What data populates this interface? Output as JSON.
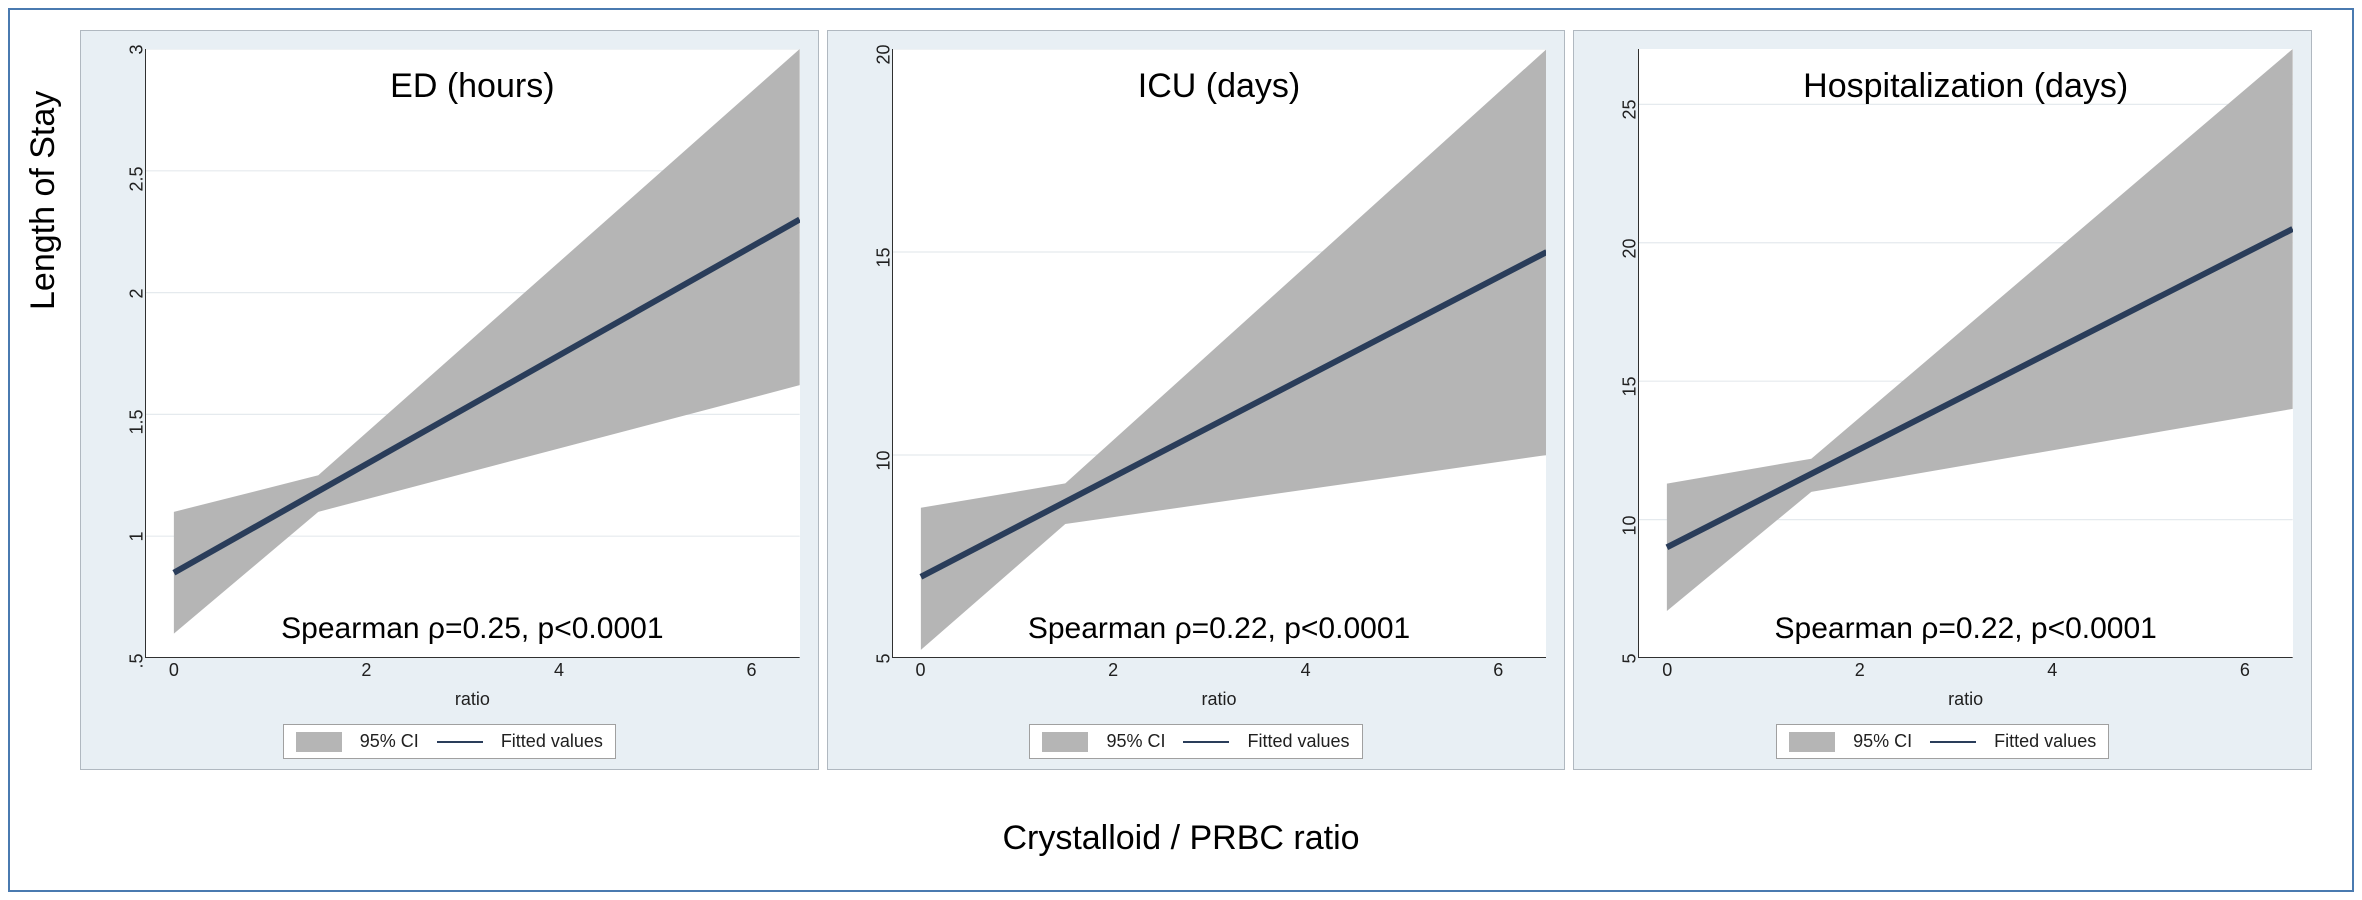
{
  "figure": {
    "y_axis_label": "Length of Stay",
    "x_axis_label": "Crystalloid / PRBC ratio",
    "outer_border_color": "#4a7ab0",
    "panel_bg": "#e8eff4",
    "plot_bg": "#ffffff",
    "grid_color": "#e5eaee",
    "ci_fill": "#b5b5b5",
    "line_color": "#2a3d5a",
    "line_width": 2.4,
    "tick_font_size": 18,
    "axis_title_font_size": 18,
    "panel_title_font_size": 34,
    "stats_font_size": 30,
    "legend": {
      "ci_label": "95% CI",
      "line_label": "Fitted values"
    },
    "x": {
      "min": -0.3,
      "max": 6.5,
      "ticks": [
        0,
        2,
        4,
        6
      ],
      "title": "ratio"
    },
    "panels": [
      {
        "title": "ED (hours)",
        "stats": "Spearman ρ=0.25, p<0.0001",
        "y": {
          "min": 0.5,
          "max": 3.0,
          "ticks": [
            0.5,
            1,
            1.5,
            2,
            2.5,
            3
          ],
          "tick_labels": [
            ".5",
            "1",
            "1.5",
            "2",
            "2.5",
            "3"
          ]
        },
        "line": {
          "x": [
            0,
            6.5
          ],
          "y": [
            0.85,
            2.3
          ]
        },
        "ci": {
          "x": [
            0,
            1.5,
            6.5
          ],
          "upper": [
            1.1,
            1.25,
            3.0
          ],
          "lower": [
            0.6,
            1.1,
            1.62
          ]
        }
      },
      {
        "title": "ICU (days)",
        "stats": "Spearman ρ=0.22, p<0.0001",
        "y": {
          "min": 5,
          "max": 20,
          "ticks": [
            5,
            10,
            15,
            20
          ],
          "tick_labels": [
            "5",
            "10",
            "15",
            "20"
          ]
        },
        "line": {
          "x": [
            0,
            6.5
          ],
          "y": [
            7.0,
            15.0
          ]
        },
        "ci": {
          "x": [
            0,
            1.5,
            6.5
          ],
          "upper": [
            8.7,
            9.3,
            20.0
          ],
          "lower": [
            5.2,
            8.3,
            10.0
          ]
        }
      },
      {
        "title": "Hospitalization (days)",
        "stats": "Spearman ρ=0.22, p<0.0001",
        "y": {
          "min": 5,
          "max": 27,
          "ticks": [
            5,
            10,
            15,
            20,
            25
          ],
          "tick_labels": [
            "5",
            "10",
            "15",
            "20",
            "25"
          ]
        },
        "line": {
          "x": [
            0,
            6.5
          ],
          "y": [
            9.0,
            20.5
          ]
        },
        "ci": {
          "x": [
            0,
            1.5,
            6.5
          ],
          "upper": [
            11.3,
            12.2,
            27.0
          ],
          "lower": [
            6.7,
            11.0,
            14.0
          ]
        }
      }
    ]
  }
}
